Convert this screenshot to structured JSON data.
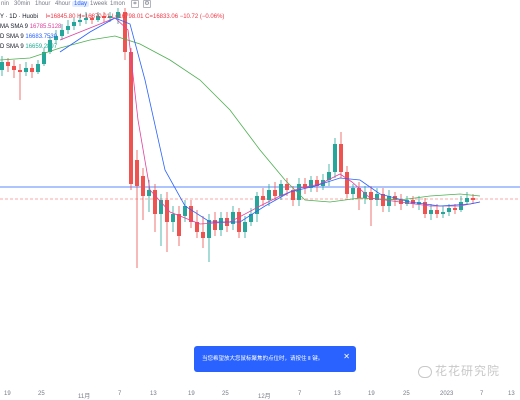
{
  "toolbar": {
    "timeframes": [
      "nin",
      "30min",
      "1hour",
      "4hour",
      "1day",
      "1week",
      "1mon"
    ],
    "active": "1day"
  },
  "legend": {
    "symbol": "Y · 1D · Huobi",
    "ohlc": "l=16845.80  H=16870.01  L=16798.01  C=16833.06  −10.72 (−0.06%)",
    "ma": [
      {
        "name": "MA SMA 9",
        "value": "16785.5128"
      },
      {
        "name": "D SMA 9",
        "value": "16683.7530"
      },
      {
        "name": "D SMA 9",
        "value": "16659.2897"
      }
    ]
  },
  "xaxis": {
    "labels": [
      "19",
      "25",
      "11月",
      "7",
      "13",
      "19",
      "25",
      "12月",
      "7",
      "13",
      "19",
      "25",
      "2023",
      "7",
      "13"
    ]
  },
  "tooltip": {
    "text": "当您希望放大您鼠标聚焦的点位时，请按住 Ⅱ 键。",
    "close": "✕"
  },
  "watermark": {
    "text": "花花研究院"
  },
  "colors": {
    "up": "#26a69a",
    "down": "#ef5350",
    "ma_pink": "#e040a0",
    "ma_blue": "#2962ff",
    "ma_green": "#4caf50",
    "price_line": "#2962ff",
    "dashed_line": "#ef5350",
    "tooltip_bg": "#2962ff"
  }
}
